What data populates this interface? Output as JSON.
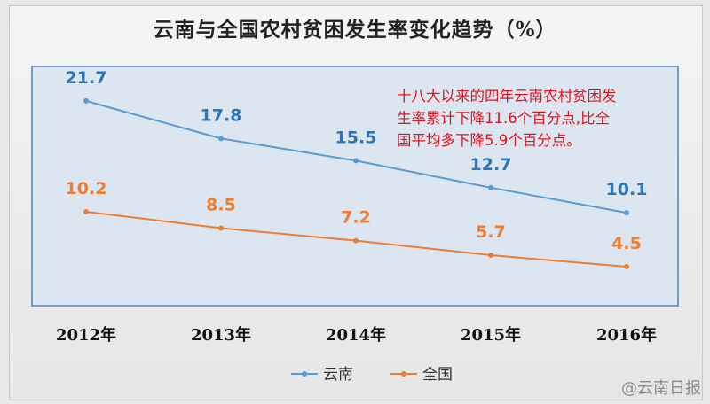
{
  "title": "云南与全国农村贫困发生率变化趋势（%）",
  "watermark": "@云南日报",
  "colors": {
    "yunnan": "#5b9bd5",
    "yunnan_label": "#2e75b6",
    "national": "#ed7d31",
    "annotation": "#e0141e",
    "plot_bg": "#dce6f1",
    "plot_border": "#4f81bd"
  },
  "chart_data": {
    "type": "line",
    "title": "云南与全国农村贫困发生率变化趋势（%）",
    "categories": [
      "2012年",
      "2013年",
      "2014年",
      "2015年",
      "2016年"
    ],
    "series": [
      {
        "name": "云南",
        "values": [
          21.7,
          17.8,
          15.5,
          12.7,
          10.1
        ]
      },
      {
        "name": "全国",
        "values": [
          10.2,
          8.5,
          7.2,
          5.7,
          4.5
        ]
      }
    ],
    "ylim": [
      0,
      25
    ],
    "xlabel": "",
    "ylabel": "",
    "legend_position": "bottom",
    "annotation": [
      "十八大以来的四年云南农村贫困发",
      "生率累计下降11.6个百分点,比全",
      "国平均多下降5.9个百分点。"
    ]
  }
}
